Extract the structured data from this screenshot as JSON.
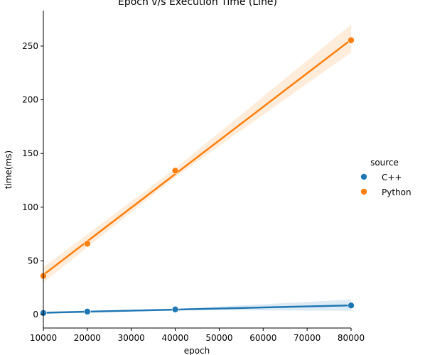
{
  "chart_data": {
    "type": "scatter",
    "title": "Epoch v/s Execution Time (Line)",
    "xlabel": "epoch",
    "ylabel": "time(ms)",
    "xlim": [
      10000,
      80000
    ],
    "ylim": [
      -12.5,
      283
    ],
    "xticks": [
      10000,
      20000,
      30000,
      40000,
      50000,
      60000,
      70000,
      80000
    ],
    "yticks": [
      0,
      50,
      100,
      150,
      200,
      250
    ],
    "grid": false,
    "legend": {
      "title": "source",
      "placement": "right"
    },
    "series": [
      {
        "name": "C++",
        "color": "#1f77b4",
        "x": [
          10000,
          20000,
          40000,
          80000
        ],
        "y": [
          1.5,
          2.8,
          4.8,
          8.5
        ],
        "fit": {
          "x": [
            10000,
            80000
          ],
          "y": [
            1.7,
            8.6
          ]
        },
        "band": {
          "x": [
            10000,
            40000,
            80000
          ],
          "lower": [
            0.7,
            4.3,
            3.5
          ],
          "upper": [
            2.7,
            5.3,
            14.0
          ]
        }
      },
      {
        "name": "Python",
        "color": "#ff7f0e",
        "x": [
          10000,
          20000,
          40000,
          80000
        ],
        "y": [
          36,
          66,
          134,
          255.5
        ],
        "fit": {
          "x": [
            10000,
            80000
          ],
          "y": [
            37,
            256
          ]
        },
        "band": {
          "x": [
            10000,
            40000,
            80000
          ],
          "lower": [
            30,
            128,
            244
          ],
          "upper": [
            44,
            136,
            270
          ]
        }
      }
    ]
  }
}
